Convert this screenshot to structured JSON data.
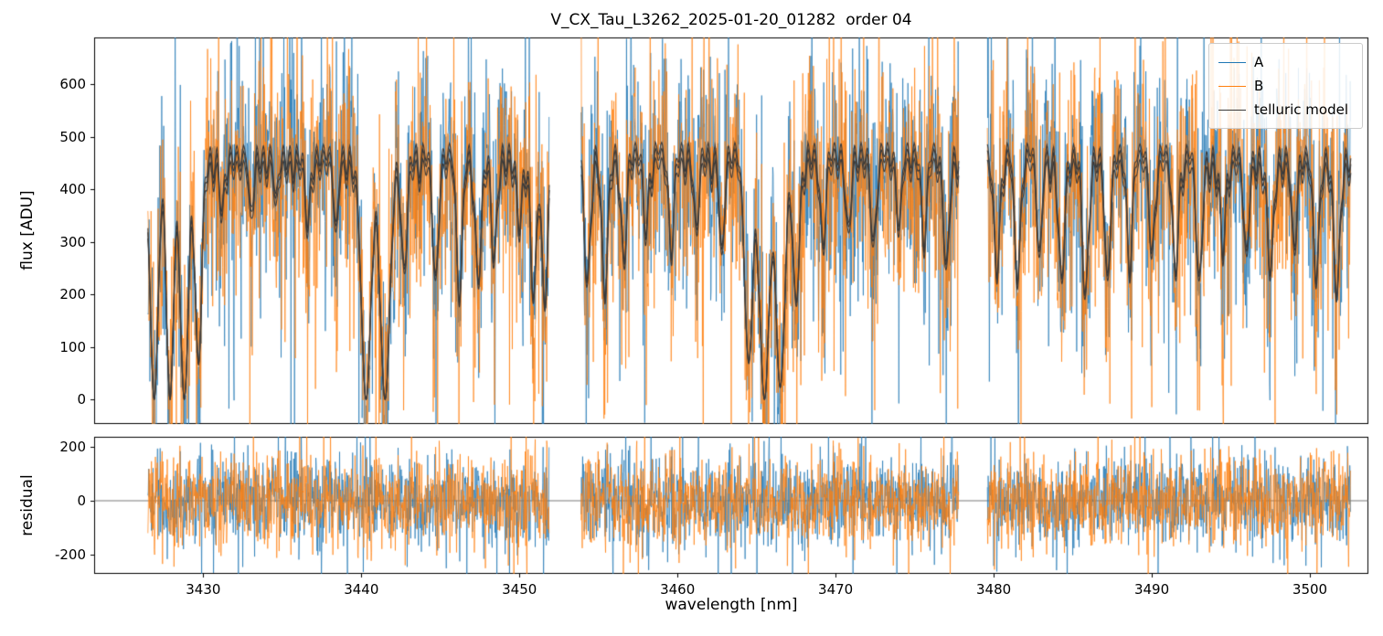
{
  "figure": {
    "title": "V_CX_Tau_L3262_2025-01-20_01282  order 04",
    "xlabel": "wavelength [nm]",
    "ylabel_top": "flux [ADU]",
    "ylabel_bottom": "residual"
  },
  "legend": {
    "items": [
      {
        "label": "A",
        "color": "#1f77b4"
      },
      {
        "label": "B",
        "color": "#ff7f0e"
      },
      {
        "label": "telluric model",
        "color": "#3a3a3a"
      }
    ]
  },
  "chart_data": {
    "type": "line",
    "title": "V_CX_Tau_L3262_2025-01-20_01282  order 04",
    "xlabel": "wavelength [nm]",
    "xlim": [
      3423.1,
      3503.7
    ],
    "xticks": [
      3430,
      3440,
      3450,
      3460,
      3470,
      3480,
      3490,
      3500
    ],
    "panels": [
      {
        "name": "flux",
        "ylabel": "flux [ADU]",
        "ylim": [
          -47,
          689
        ],
        "yticks": [
          0,
          100,
          200,
          300,
          400,
          500,
          600
        ]
      },
      {
        "name": "residual",
        "ylabel": "residual",
        "ylim": [
          -271,
          237
        ],
        "yticks": [
          -200,
          0,
          200
        ]
      }
    ],
    "segments": [
      [
        3426.5,
        3451.9
      ],
      [
        3453.9,
        3477.8
      ],
      [
        3479.6,
        3502.6
      ]
    ],
    "series": [
      {
        "name": "A",
        "color": "#1f77b4",
        "continuum": 470,
        "noise_sigma": 100,
        "residual_sigma": 82
      },
      {
        "name": "B",
        "color": "#ff7f0e",
        "continuum": 458,
        "noise_sigma": 100,
        "residual_sigma": 82
      }
    ],
    "telluric_model": {
      "color": "#3a3a3a",
      "continuum_levels": [
        492,
        480,
        462
      ],
      "arch_center": 3464,
      "arch_halfwidth": 40,
      "arch_depth": 0.02,
      "comb": {
        "spacing": 0.42,
        "width": 0.09,
        "depth_min": 0.05,
        "depth_max": 0.16
      },
      "lines": [
        [
          3426.9,
          1.0,
          0.25
        ],
        [
          3427.9,
          1.0,
          0.22
        ],
        [
          3428.8,
          1.0,
          0.25
        ],
        [
          3429.7,
          0.85,
          0.2
        ],
        [
          3431.2,
          0.2,
          0.12
        ],
        [
          3433.0,
          0.22,
          0.12
        ],
        [
          3434.6,
          0.18,
          0.12
        ],
        [
          3436.6,
          0.28,
          0.14
        ],
        [
          3438.4,
          0.3,
          0.15
        ],
        [
          3440.3,
          1.0,
          0.3
        ],
        [
          3441.5,
          1.0,
          0.3
        ],
        [
          3442.7,
          0.45,
          0.18
        ],
        [
          3444.7,
          0.5,
          0.18
        ],
        [
          3446.2,
          0.55,
          0.18
        ],
        [
          3447.4,
          0.5,
          0.18
        ],
        [
          3448.4,
          0.4,
          0.16
        ],
        [
          3450.0,
          0.3,
          0.15
        ],
        [
          3450.9,
          0.55,
          0.18
        ],
        [
          3451.6,
          0.6,
          0.18
        ],
        [
          3454.3,
          0.5,
          0.18
        ],
        [
          3455.4,
          0.55,
          0.18
        ],
        [
          3456.6,
          0.4,
          0.16
        ],
        [
          3458.0,
          0.3,
          0.15
        ],
        [
          3459.6,
          0.35,
          0.16
        ],
        [
          3461.2,
          0.3,
          0.15
        ],
        [
          3462.8,
          0.4,
          0.16
        ],
        [
          3464.5,
          0.85,
          0.25
        ],
        [
          3465.5,
          1.0,
          0.3
        ],
        [
          3466.5,
          0.95,
          0.28
        ],
        [
          3467.5,
          0.6,
          0.2
        ],
        [
          3469.2,
          0.35,
          0.16
        ],
        [
          3470.8,
          0.3,
          0.15
        ],
        [
          3472.4,
          0.35,
          0.16
        ],
        [
          3474.0,
          0.3,
          0.15
        ],
        [
          3475.6,
          0.35,
          0.16
        ],
        [
          3477.0,
          0.45,
          0.18
        ],
        [
          3480.2,
          0.45,
          0.18
        ],
        [
          3481.5,
          0.5,
          0.18
        ],
        [
          3482.9,
          0.4,
          0.16
        ],
        [
          3484.3,
          0.5,
          0.18
        ],
        [
          3485.8,
          0.55,
          0.18
        ],
        [
          3487.2,
          0.5,
          0.18
        ],
        [
          3488.6,
          0.45,
          0.16
        ],
        [
          3490.0,
          0.4,
          0.16
        ],
        [
          3491.5,
          0.45,
          0.18
        ],
        [
          3493.0,
          0.5,
          0.18
        ],
        [
          3494.5,
          0.35,
          0.16
        ],
        [
          3496.0,
          0.4,
          0.16
        ],
        [
          3497.5,
          0.45,
          0.18
        ],
        [
          3499.0,
          0.35,
          0.16
        ],
        [
          3500.4,
          0.45,
          0.18
        ],
        [
          3501.7,
          0.55,
          0.18
        ]
      ]
    },
    "noise_seed": 20250120,
    "grid": false,
    "legend_position": "upper right",
    "legend_entries": [
      "A",
      "B",
      "telluric model"
    ]
  }
}
